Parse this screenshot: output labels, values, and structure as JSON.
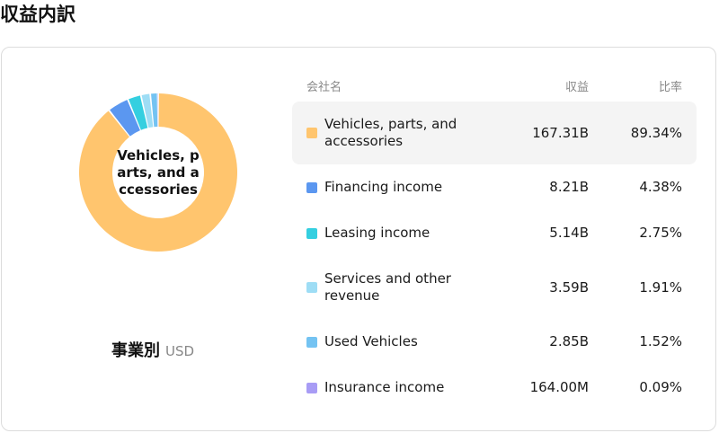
{
  "page": {
    "title": "収益内訳"
  },
  "donut": {
    "center_label": [
      "Vehicles, p",
      "arts, and a",
      "ccessories"
    ]
  },
  "caption": {
    "by": "事業別",
    "unit": "USD"
  },
  "table": {
    "headers": {
      "company": "会社名",
      "revenue": "収益",
      "ratio": "比率"
    },
    "rows": [
      {
        "name": "Vehicles, parts, and accessories",
        "revenue": "167.31B",
        "ratio": "89.34%",
        "color": "#FFC56E",
        "selected": true
      },
      {
        "name": "Financing income",
        "revenue": "8.21B",
        "ratio": "4.38%",
        "color": "#5B97F0",
        "selected": false
      },
      {
        "name": "Leasing income",
        "revenue": "5.14B",
        "ratio": "2.75%",
        "color": "#34CFE0",
        "selected": false
      },
      {
        "name": "Services and other revenue",
        "revenue": "3.59B",
        "ratio": "1.91%",
        "color": "#9EDDF5",
        "selected": false
      },
      {
        "name": "Used Vehicles",
        "revenue": "2.85B",
        "ratio": "1.52%",
        "color": "#74C3F2",
        "selected": false
      },
      {
        "name": "Insurance income",
        "revenue": "164.00M",
        "ratio": "0.09%",
        "color": "#A89CF5",
        "selected": false
      }
    ]
  },
  "chart_data": {
    "type": "pie",
    "categories": [
      "Vehicles, parts, and accessories",
      "Financing income",
      "Leasing income",
      "Services and other revenue",
      "Used Vehicles",
      "Insurance income"
    ],
    "values": [
      89.34,
      4.38,
      2.75,
      1.91,
      1.52,
      0.09
    ],
    "colors": [
      "#FFC56E",
      "#5B97F0",
      "#34CFE0",
      "#9EDDF5",
      "#74C3F2",
      "#A89CF5"
    ],
    "donut": true
  }
}
